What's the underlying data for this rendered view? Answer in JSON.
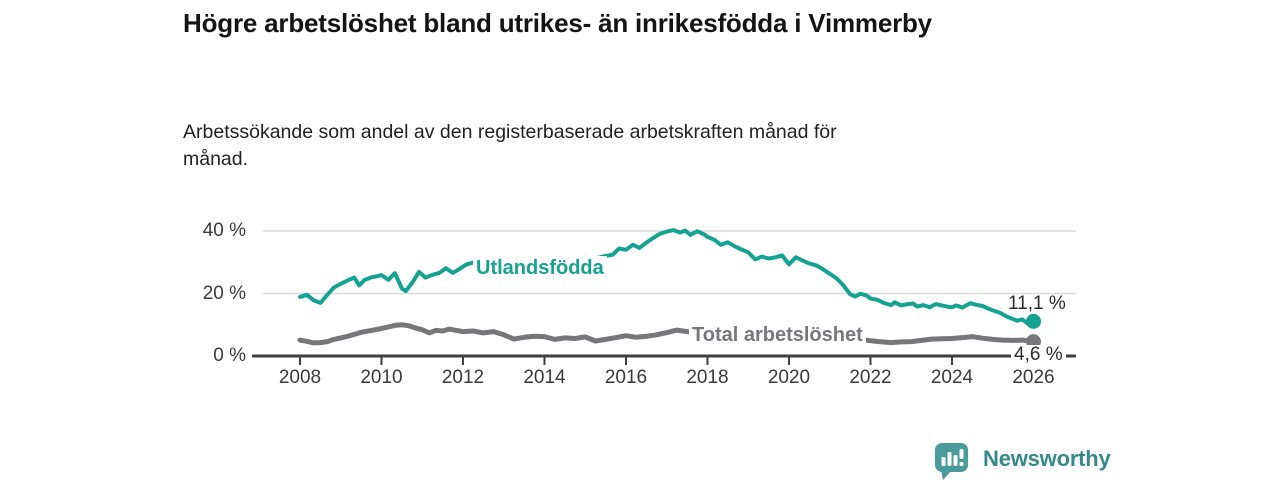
{
  "header": {
    "title": "Högre arbetslöshet bland utrikes- än inrikesfödda i Vimmerby",
    "subtitle": "Arbetssökande som andel av den registerbaserade arbetskraften månad för månad."
  },
  "chart_data": {
    "type": "line",
    "title": "Högre arbetslöshet bland utrikes- än inrikesfödda i Vimmerby",
    "xlabel": "",
    "ylabel": "",
    "grid": "horizontal-only",
    "legend_position": "inline-on-lines",
    "ylim": [
      0,
      44
    ],
    "xlim": [
      2007.8,
      2027.0
    ],
    "y_ticks": [
      {
        "value": 0,
        "label": "0 %"
      },
      {
        "value": 20,
        "label": "20 %"
      },
      {
        "value": 40,
        "label": "40 %"
      }
    ],
    "x_ticks": [
      {
        "value": 2008,
        "label": "2008"
      },
      {
        "value": 2010,
        "label": "2010"
      },
      {
        "value": 2012,
        "label": "2012"
      },
      {
        "value": 2014,
        "label": "2014"
      },
      {
        "value": 2016,
        "label": "2016"
      },
      {
        "value": 2018,
        "label": "2018"
      },
      {
        "value": 2020,
        "label": "2020"
      },
      {
        "value": 2022,
        "label": "2022"
      },
      {
        "value": 2024,
        "label": "2024"
      },
      {
        "value": 2026,
        "label": "2026"
      }
    ],
    "series": [
      {
        "name": "Utlandsfödda",
        "color": "#14a292",
        "end_value": 11.1,
        "end_label": "11,1 %",
        "points": [
          [
            2008.0,
            18.9
          ],
          [
            2008.17,
            19.6
          ],
          [
            2008.33,
            17.9
          ],
          [
            2008.5,
            17.0
          ],
          [
            2008.67,
            19.6
          ],
          [
            2008.83,
            21.9
          ],
          [
            2009.0,
            23.1
          ],
          [
            2009.17,
            24.2
          ],
          [
            2009.33,
            25.1
          ],
          [
            2009.45,
            22.6
          ],
          [
            2009.58,
            24.3
          ],
          [
            2009.75,
            25.2
          ],
          [
            2009.92,
            25.6
          ],
          [
            2010.0,
            25.9
          ],
          [
            2010.17,
            24.4
          ],
          [
            2010.33,
            26.5
          ],
          [
            2010.5,
            21.6
          ],
          [
            2010.6,
            20.8
          ],
          [
            2010.75,
            23.4
          ],
          [
            2010.92,
            26.9
          ],
          [
            2011.08,
            25.1
          ],
          [
            2011.25,
            26.0
          ],
          [
            2011.42,
            26.6
          ],
          [
            2011.58,
            28.1
          ],
          [
            2011.75,
            26.6
          ],
          [
            2011.92,
            27.9
          ],
          [
            2012.08,
            29.3
          ],
          [
            2012.25,
            29.9
          ],
          [
            2012.5,
            29.2
          ],
          [
            2012.75,
            29.6
          ],
          [
            2013.0,
            29.4
          ],
          [
            2013.5,
            30.1
          ],
          [
            2014.0,
            30.6
          ],
          [
            2014.5,
            31.0
          ],
          [
            2015.0,
            31.4
          ],
          [
            2015.25,
            31.2
          ],
          [
            2015.5,
            32.0
          ],
          [
            2015.67,
            32.4
          ],
          [
            2015.83,
            34.4
          ],
          [
            2016.0,
            34.0
          ],
          [
            2016.17,
            35.6
          ],
          [
            2016.33,
            34.6
          ],
          [
            2016.5,
            36.3
          ],
          [
            2016.67,
            37.8
          ],
          [
            2016.83,
            39.1
          ],
          [
            2017.0,
            39.8
          ],
          [
            2017.17,
            40.3
          ],
          [
            2017.33,
            39.5
          ],
          [
            2017.45,
            40.2
          ],
          [
            2017.58,
            38.8
          ],
          [
            2017.75,
            39.9
          ],
          [
            2017.92,
            38.9
          ],
          [
            2018.0,
            38.1
          ],
          [
            2018.17,
            37.2
          ],
          [
            2018.33,
            35.6
          ],
          [
            2018.5,
            36.4
          ],
          [
            2018.67,
            35.1
          ],
          [
            2018.83,
            34.1
          ],
          [
            2019.0,
            33.2
          ],
          [
            2019.17,
            30.9
          ],
          [
            2019.33,
            31.8
          ],
          [
            2019.5,
            31.2
          ],
          [
            2019.67,
            31.6
          ],
          [
            2019.83,
            32.2
          ],
          [
            2020.0,
            29.3
          ],
          [
            2020.17,
            31.6
          ],
          [
            2020.33,
            30.6
          ],
          [
            2020.5,
            29.6
          ],
          [
            2020.67,
            29.0
          ],
          [
            2020.83,
            27.8
          ],
          [
            2021.0,
            26.3
          ],
          [
            2021.17,
            24.8
          ],
          [
            2021.33,
            22.7
          ],
          [
            2021.5,
            19.8
          ],
          [
            2021.62,
            19.0
          ],
          [
            2021.75,
            19.9
          ],
          [
            2021.9,
            19.4
          ],
          [
            2022.0,
            18.4
          ],
          [
            2022.17,
            18.0
          ],
          [
            2022.33,
            17.0
          ],
          [
            2022.5,
            16.3
          ],
          [
            2022.6,
            17.2
          ],
          [
            2022.75,
            16.2
          ],
          [
            2022.92,
            16.6
          ],
          [
            2023.05,
            16.8
          ],
          [
            2023.15,
            15.8
          ],
          [
            2023.3,
            16.3
          ],
          [
            2023.45,
            15.6
          ],
          [
            2023.6,
            16.6
          ],
          [
            2023.75,
            16.2
          ],
          [
            2023.92,
            15.7
          ],
          [
            2024.0,
            15.6
          ],
          [
            2024.1,
            16.2
          ],
          [
            2024.25,
            15.5
          ],
          [
            2024.45,
            16.9
          ],
          [
            2024.6,
            16.4
          ],
          [
            2024.75,
            16.0
          ],
          [
            2024.9,
            15.1
          ],
          [
            2025.0,
            14.6
          ],
          [
            2025.17,
            13.9
          ],
          [
            2025.33,
            12.7
          ],
          [
            2025.5,
            11.8
          ],
          [
            2025.6,
            11.3
          ],
          [
            2025.72,
            11.7
          ],
          [
            2025.85,
            10.5
          ],
          [
            2026.0,
            11.1
          ]
        ]
      },
      {
        "name": "Total arbetslöshet",
        "color": "#77767b",
        "end_value": 4.6,
        "end_label": "4,6 %",
        "points": [
          [
            2008.0,
            5.1
          ],
          [
            2008.17,
            4.7
          ],
          [
            2008.33,
            4.2
          ],
          [
            2008.5,
            4.3
          ],
          [
            2008.67,
            4.6
          ],
          [
            2008.83,
            5.3
          ],
          [
            2009.0,
            5.8
          ],
          [
            2009.25,
            6.6
          ],
          [
            2009.5,
            7.6
          ],
          [
            2009.75,
            8.2
          ],
          [
            2010.0,
            8.8
          ],
          [
            2010.17,
            9.3
          ],
          [
            2010.33,
            9.8
          ],
          [
            2010.5,
            10.0
          ],
          [
            2010.67,
            9.7
          ],
          [
            2010.83,
            9.0
          ],
          [
            2011.0,
            8.4
          ],
          [
            2011.17,
            7.4
          ],
          [
            2011.33,
            8.2
          ],
          [
            2011.5,
            8.0
          ],
          [
            2011.67,
            8.6
          ],
          [
            2011.83,
            8.2
          ],
          [
            2012.0,
            7.8
          ],
          [
            2012.25,
            8.0
          ],
          [
            2012.5,
            7.4
          ],
          [
            2012.75,
            7.8
          ],
          [
            2013.0,
            6.8
          ],
          [
            2013.25,
            5.4
          ],
          [
            2013.5,
            6.0
          ],
          [
            2013.75,
            6.3
          ],
          [
            2014.0,
            6.2
          ],
          [
            2014.25,
            5.3
          ],
          [
            2014.5,
            5.8
          ],
          [
            2014.75,
            5.6
          ],
          [
            2015.0,
            6.1
          ],
          [
            2015.25,
            4.8
          ],
          [
            2015.5,
            5.3
          ],
          [
            2015.75,
            5.9
          ],
          [
            2016.0,
            6.5
          ],
          [
            2016.25,
            6.0
          ],
          [
            2016.5,
            6.3
          ],
          [
            2016.75,
            6.8
          ],
          [
            2017.0,
            7.5
          ],
          [
            2017.25,
            8.3
          ],
          [
            2017.5,
            7.8
          ],
          [
            2018.0,
            7.4
          ],
          [
            2018.5,
            7.0
          ],
          [
            2019.0,
            6.6
          ],
          [
            2019.5,
            6.3
          ],
          [
            2020.0,
            6.9
          ],
          [
            2020.5,
            7.3
          ],
          [
            2021.0,
            6.6
          ],
          [
            2021.5,
            5.7
          ],
          [
            2022.0,
            4.9
          ],
          [
            2022.2,
            4.6
          ],
          [
            2022.5,
            4.3
          ],
          [
            2022.75,
            4.5
          ],
          [
            2023.0,
            4.6
          ],
          [
            2023.25,
            5.0
          ],
          [
            2023.5,
            5.4
          ],
          [
            2023.75,
            5.5
          ],
          [
            2024.0,
            5.6
          ],
          [
            2024.25,
            5.9
          ],
          [
            2024.5,
            6.2
          ],
          [
            2024.75,
            5.7
          ],
          [
            2025.0,
            5.3
          ],
          [
            2025.25,
            5.1
          ],
          [
            2025.5,
            5.0
          ],
          [
            2025.75,
            5.1
          ],
          [
            2026.0,
            4.6
          ]
        ]
      }
    ],
    "colors": {
      "axis": "#3f3f3f",
      "gridline": "#dadada",
      "tick_label": "#3a3a3a"
    }
  },
  "footer": {
    "brand": "Newsworthy",
    "brand_color": "#35898b",
    "logo_color": "#4a9b9b",
    "logo_icon": "bar-chart-speech-bubble"
  }
}
